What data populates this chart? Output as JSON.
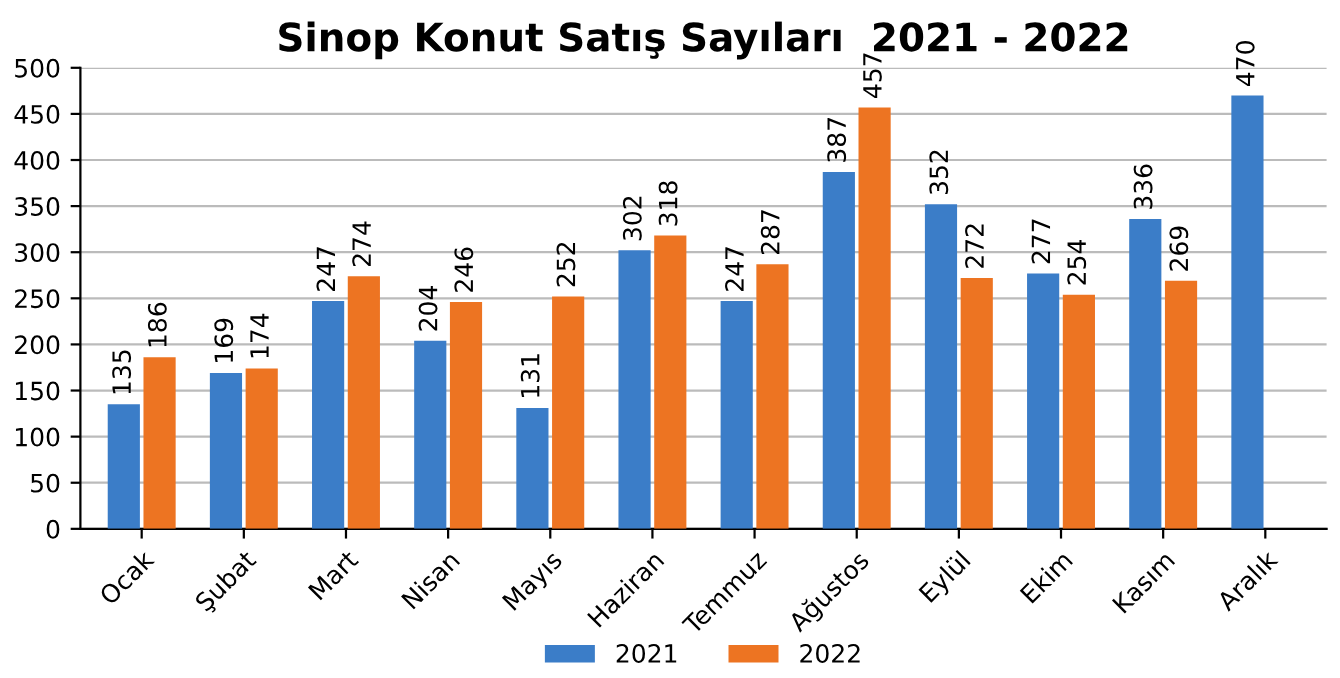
{
  "chart_data": {
    "type": "bar",
    "title": "Sinop Konut Satış Sayıları  2021 - 2022",
    "categories": [
      "Ocak",
      "Şubat",
      "Mart",
      "Nisan",
      "Mayıs",
      "Haziran",
      "Temmuz",
      "Ağustos",
      "Eylül",
      "Ekim",
      "Kasım",
      "Aralık"
    ],
    "series": [
      {
        "name": "2021",
        "color": "#3b7dc8",
        "values": [
          135,
          169,
          247,
          204,
          131,
          302,
          247,
          387,
          352,
          277,
          336,
          470
        ]
      },
      {
        "name": "2022",
        "color": "#ed7422",
        "values": [
          186,
          174,
          274,
          246,
          252,
          318,
          287,
          457,
          272,
          254,
          269,
          null
        ]
      }
    ],
    "ylim": [
      0,
      500
    ],
    "yticks": [
      0,
      50,
      100,
      150,
      200,
      250,
      300,
      350,
      400,
      450,
      500
    ],
    "grid": "y",
    "legend": "bottom",
    "data_labels": true
  }
}
